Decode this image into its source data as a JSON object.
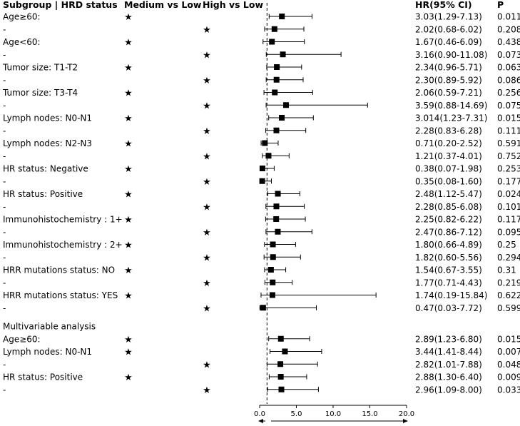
{
  "headers": {
    "subgroup": "Subgroup | HRD status",
    "medium_vs_low": "Medium vs Low",
    "high_vs_low": "High vs Low",
    "hr_ci": "HR(95% CI)",
    "p": "P"
  },
  "section_title": "Multivariable analysis",
  "star_glyph": "★",
  "chart_data": {
    "type": "forest",
    "x_ticks": [
      "0.0",
      "5.0",
      "10.0",
      "15.0",
      "20.0"
    ],
    "xlim": [
      0,
      20
    ],
    "reference_line": 1,
    "rows": [
      {
        "label": "Age≥60:",
        "group": "Medium vs Low",
        "hr": 3.03,
        "lo": 1.29,
        "hi": 7.13,
        "ci_text": "3.03(1.29-7.13)",
        "p": "0.011"
      },
      {
        "label": "-",
        "group": "High vs Low",
        "hr": 2.02,
        "lo": 0.68,
        "hi": 6.02,
        "ci_text": "2.02(0.68-6.02)",
        "p": "0.208"
      },
      {
        "label": "Age<60:",
        "group": "Medium vs Low",
        "hr": 1.67,
        "lo": 0.46,
        "hi": 6.09,
        "ci_text": "1.67(0.46-6.09)",
        "p": "0.438"
      },
      {
        "label": "-",
        "group": "High vs Low",
        "hr": 3.16,
        "lo": 0.9,
        "hi": 11.08,
        "ci_text": "3.16(0.90-11.08)",
        "p": "0.073"
      },
      {
        "label": "Tumor size: T1-T2",
        "group": "Medium vs Low",
        "hr": 2.34,
        "lo": 0.96,
        "hi": 5.71,
        "ci_text": "2.34(0.96-5.71)",
        "p": "0.063"
      },
      {
        "label": "-",
        "group": "High vs Low",
        "hr": 2.3,
        "lo": 0.89,
        "hi": 5.92,
        "ci_text": "2.30(0.89-5.92)",
        "p": "0.086"
      },
      {
        "label": "Tumor size: T3-T4",
        "group": "Medium vs Low",
        "hr": 2.06,
        "lo": 0.59,
        "hi": 7.21,
        "ci_text": "2.06(0.59-7.21)",
        "p": "0.256"
      },
      {
        "label": "-",
        "group": "High vs Low",
        "hr": 3.59,
        "lo": 0.88,
        "hi": 14.69,
        "ci_text": "3.59(0.88-14.69)",
        "p": "0.075"
      },
      {
        "label": "Lymph nodes: N0-N1",
        "group": "Medium vs Low",
        "hr": 3.014,
        "lo": 1.23,
        "hi": 7.31,
        "ci_text": "3.014(1.23-7.31)",
        "p": "0.015"
      },
      {
        "label": "-",
        "group": "High vs Low",
        "hr": 2.28,
        "lo": 0.83,
        "hi": 6.28,
        "ci_text": "2.28(0.83-6.28)",
        "p": "0.111"
      },
      {
        "label": "Lymph nodes: N2-N3",
        "group": "Medium vs Low",
        "hr": 0.71,
        "lo": 0.2,
        "hi": 2.52,
        "ci_text": "0.71(0.20-2.52)",
        "p": "0.591"
      },
      {
        "label": "-",
        "group": "High vs Low",
        "hr": 1.21,
        "lo": 0.37,
        "hi": 4.01,
        "ci_text": "1.21(0.37-4.01)",
        "p": "0.752"
      },
      {
        "label": "HR status: Negative",
        "group": "Medium vs Low",
        "hr": 0.38,
        "lo": 0.07,
        "hi": 1.98,
        "ci_text": "0.38(0.07-1.98)",
        "p": "0.253"
      },
      {
        "label": "-",
        "group": "High vs Low",
        "hr": 0.35,
        "lo": 0.08,
        "hi": 1.6,
        "ci_text": "0.35(0.08-1.60)",
        "p": "0.177"
      },
      {
        "label": "HR status: Positive",
        "group": "Medium vs Low",
        "hr": 2.48,
        "lo": 1.12,
        "hi": 5.47,
        "ci_text": "2.48(1.12-5.47)",
        "p": "0.024"
      },
      {
        "label": "-",
        "group": "High vs Low",
        "hr": 2.28,
        "lo": 0.85,
        "hi": 6.08,
        "ci_text": "2.28(0.85-6.08)",
        "p": "0.101"
      },
      {
        "label": "Immunohistochemistry : 1+",
        "group": "Medium vs Low",
        "hr": 2.25,
        "lo": 0.82,
        "hi": 6.22,
        "ci_text": "2.25(0.82-6.22)",
        "p": "0.117"
      },
      {
        "label": "-",
        "group": "High vs Low",
        "hr": 2.47,
        "lo": 0.86,
        "hi": 7.12,
        "ci_text": "2.47(0.86-7.12)",
        "p": "0.095"
      },
      {
        "label": "Immunohistochemistry : 2+",
        "group": "Medium vs Low",
        "hr": 1.8,
        "lo": 0.66,
        "hi": 4.89,
        "ci_text": "1.80(0.66-4.89)",
        "p": "0.25"
      },
      {
        "label": "-",
        "group": "High vs Low",
        "hr": 1.82,
        "lo": 0.6,
        "hi": 5.56,
        "ci_text": "1.82(0.60-5.56)",
        "p": "0.294"
      },
      {
        "label": "HRR mutations status: NO",
        "group": "Medium vs Low",
        "hr": 1.54,
        "lo": 0.67,
        "hi": 3.55,
        "ci_text": "1.54(0.67-3.55)",
        "p": "0.31"
      },
      {
        "label": "-",
        "group": "High vs Low",
        "hr": 1.77,
        "lo": 0.71,
        "hi": 4.43,
        "ci_text": "1.77(0.71-4.43)",
        "p": "0.219"
      },
      {
        "label": "HRR mutations status: YES",
        "group": "Medium vs Low",
        "hr": 1.74,
        "lo": 0.19,
        "hi": 15.84,
        "ci_text": "1.74(0.19-15.84)",
        "p": "0.622"
      },
      {
        "label": "-",
        "group": "High vs Low",
        "hr": 0.47,
        "lo": 0.03,
        "hi": 7.72,
        "ci_text": "0.47(0.03-7.72)",
        "p": "0.599"
      },
      {
        "section": "Multivariable analysis"
      },
      {
        "label": "Age≥60:",
        "group": "Medium vs Low",
        "hr": 2.89,
        "lo": 1.23,
        "hi": 6.8,
        "ci_text": "2.89(1.23-6.80)",
        "p": "0.015"
      },
      {
        "label": "Lymph nodes: N0-N1",
        "group": "Medium vs Low",
        "hr": 3.44,
        "lo": 1.41,
        "hi": 8.44,
        "ci_text": "3.44(1.41-8.44)",
        "p": "0.007"
      },
      {
        "label": "-",
        "group": "High vs Low",
        "hr": 2.82,
        "lo": 1.01,
        "hi": 7.88,
        "ci_text": "2.82(1.01-7.88)",
        "p": "0.048"
      },
      {
        "label": "HR status: Positive",
        "group": "Medium vs Low",
        "hr": 2.88,
        "lo": 1.3,
        "hi": 6.4,
        "ci_text": "2.88(1.30-6.40)",
        "p": "0.009"
      },
      {
        "label": "-",
        "group": "High vs Low",
        "hr": 2.96,
        "lo": 1.09,
        "hi": 8.0,
        "ci_text": "2.96(1.09-8.00)",
        "p": "0.033"
      }
    ]
  }
}
